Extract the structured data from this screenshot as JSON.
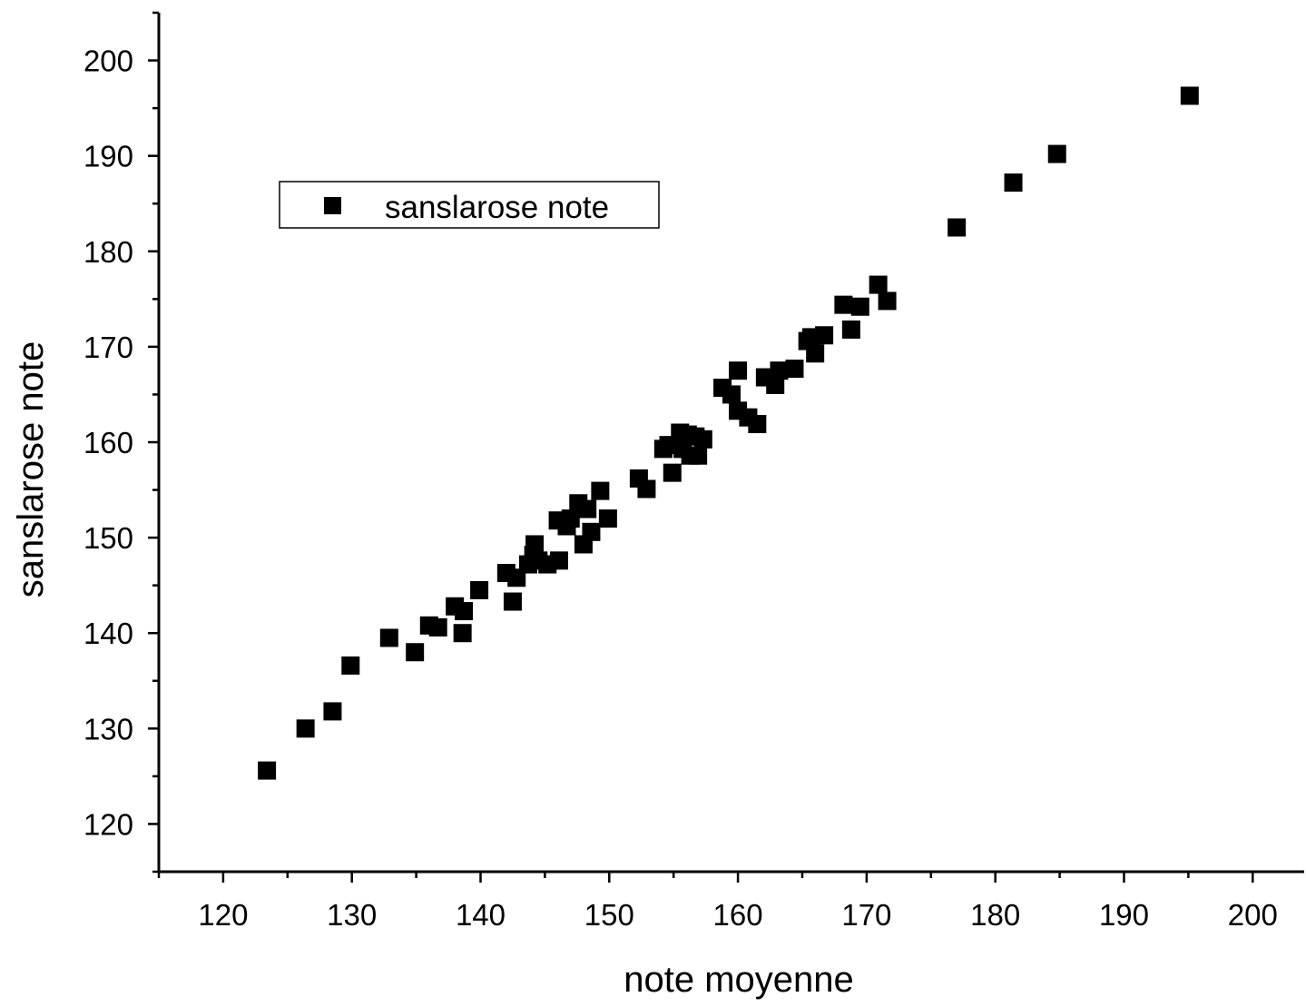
{
  "chart_data": {
    "type": "scatter",
    "title": "",
    "xlabel": "note moyenne",
    "ylabel": "sanslarose note",
    "xlim": [
      115,
      204
    ],
    "ylim": [
      115,
      205
    ],
    "xticks": [
      120,
      130,
      140,
      150,
      160,
      170,
      180,
      190,
      200
    ],
    "yticks": [
      120,
      130,
      140,
      150,
      160,
      170,
      180,
      190,
      200
    ],
    "grid": false,
    "legend": {
      "position": "upper-left",
      "entries": [
        "sanslarose note"
      ]
    },
    "marker": "square",
    "colors": {
      "marker": "#000000",
      "axis": "#000000",
      "background": "#ffffff"
    },
    "series": [
      {
        "name": "sanslarose note",
        "points": [
          [
            123.4,
            125.6
          ],
          [
            126.4,
            130.0
          ],
          [
            128.5,
            131.8
          ],
          [
            129.9,
            136.6
          ],
          [
            132.9,
            139.5
          ],
          [
            134.9,
            138.0
          ],
          [
            136.0,
            140.8
          ],
          [
            136.7,
            140.6
          ],
          [
            138.0,
            142.8
          ],
          [
            138.6,
            140.0
          ],
          [
            138.7,
            142.3
          ],
          [
            139.9,
            144.5
          ],
          [
            142.0,
            146.3
          ],
          [
            142.5,
            143.3
          ],
          [
            142.8,
            145.8
          ],
          [
            143.7,
            147.2
          ],
          [
            144.1,
            148.2
          ],
          [
            144.2,
            149.3
          ],
          [
            144.5,
            147.6
          ],
          [
            145.2,
            147.2
          ],
          [
            146.0,
            151.8
          ],
          [
            146.1,
            147.6
          ],
          [
            146.7,
            151.2
          ],
          [
            147.0,
            152.0
          ],
          [
            147.6,
            153.6
          ],
          [
            148.0,
            149.3
          ],
          [
            148.3,
            153.0
          ],
          [
            148.6,
            150.6
          ],
          [
            149.3,
            154.9
          ],
          [
            149.9,
            152.0
          ],
          [
            152.3,
            156.2
          ],
          [
            152.9,
            155.1
          ],
          [
            154.2,
            159.3
          ],
          [
            154.6,
            159.7
          ],
          [
            154.9,
            156.8
          ],
          [
            155.5,
            161.0
          ],
          [
            155.7,
            159.3
          ],
          [
            156.1,
            160.8
          ],
          [
            156.3,
            158.6
          ],
          [
            156.7,
            160.6
          ],
          [
            156.9,
            158.6
          ],
          [
            157.3,
            160.3
          ],
          [
            158.8,
            165.7
          ],
          [
            159.5,
            165.0
          ],
          [
            160.0,
            163.3
          ],
          [
            160.0,
            167.5
          ],
          [
            160.8,
            162.6
          ],
          [
            161.5,
            161.9
          ],
          [
            162.1,
            166.8
          ],
          [
            162.9,
            166.0
          ],
          [
            163.2,
            167.5
          ],
          [
            164.4,
            167.7
          ],
          [
            165.4,
            170.6
          ],
          [
            165.7,
            171.0
          ],
          [
            166.0,
            169.3
          ],
          [
            166.7,
            171.2
          ],
          [
            168.2,
            174.4
          ],
          [
            168.8,
            171.8
          ],
          [
            169.5,
            174.2
          ],
          [
            170.9,
            176.5
          ],
          [
            171.6,
            174.8
          ],
          [
            177.0,
            182.5
          ],
          [
            181.4,
            187.2
          ],
          [
            184.8,
            190.2
          ],
          [
            195.1,
            196.3
          ]
        ]
      }
    ]
  }
}
